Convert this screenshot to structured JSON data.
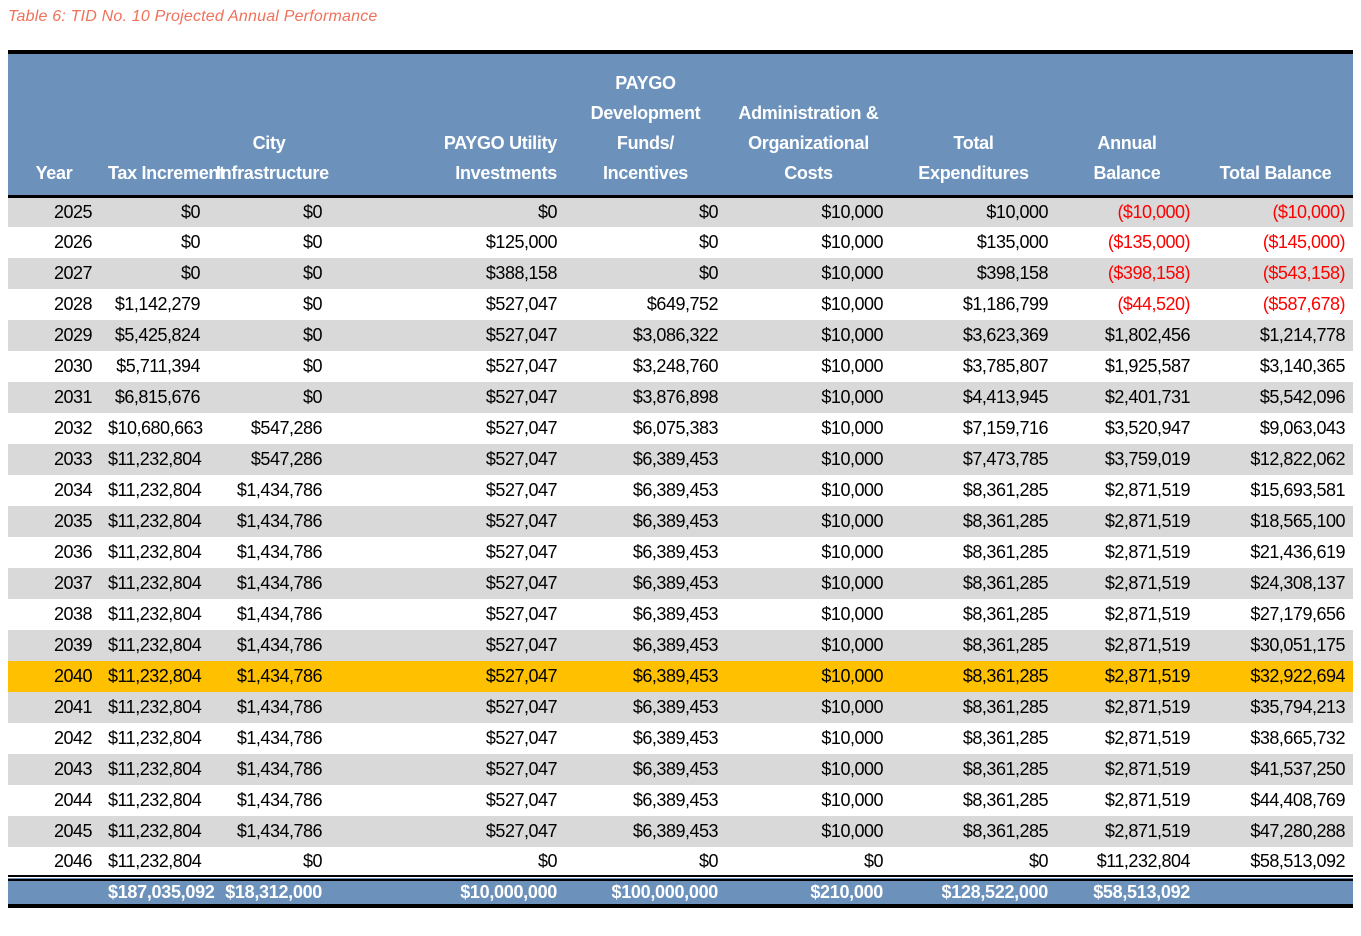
{
  "title": "Table 6: TID No. 10 Projected Annual Performance",
  "colors": {
    "header_bg": "#6C92BC",
    "total_bg": "#6C92BC",
    "stripe": "#D9D9D9",
    "highlight": "#FFC000",
    "negative": "#FF0000",
    "caption": "#F0715A",
    "text": "#000000",
    "header_text": "#FFFFFF"
  },
  "table": {
    "columns": [
      {
        "key": "year",
        "lines": [
          "Year"
        ]
      },
      {
        "key": "tax-increment",
        "lines": [
          "Tax Increment"
        ]
      },
      {
        "key": "city-infrastructure",
        "lines": [
          "City",
          "Infrastructure"
        ]
      },
      {
        "key": "paygo-utility-investments",
        "lines": [
          "PAYGO Utility",
          "Investments"
        ]
      },
      {
        "key": "paygo-development-funds-incentives",
        "lines": [
          "PAYGO",
          "Development",
          "Funds/",
          "Incentives"
        ]
      },
      {
        "key": "administration-organizational-costs",
        "lines": [
          "Administration &",
          "Organizational",
          "Costs"
        ]
      },
      {
        "key": "total-expenditures",
        "lines": [
          "Total",
          "Expenditures"
        ]
      },
      {
        "key": "annual-balance",
        "lines": [
          "Annual",
          "Balance"
        ]
      },
      {
        "key": "total-balance",
        "lines": [
          "Total Balance"
        ]
      }
    ],
    "rows": [
      {
        "cells": [
          "2025",
          "$0",
          "$0",
          "$0",
          "$0",
          "$10,000",
          "$10,000",
          "($10,000)",
          "($10,000)"
        ],
        "highlight": false
      },
      {
        "cells": [
          "2026",
          "$0",
          "$0",
          "$125,000",
          "$0",
          "$10,000",
          "$135,000",
          "($135,000)",
          "($145,000)"
        ],
        "highlight": false
      },
      {
        "cells": [
          "2027",
          "$0",
          "$0",
          "$388,158",
          "$0",
          "$10,000",
          "$398,158",
          "($398,158)",
          "($543,158)"
        ],
        "highlight": false
      },
      {
        "cells": [
          "2028",
          "$1,142,279",
          "$0",
          "$527,047",
          "$649,752",
          "$10,000",
          "$1,186,799",
          "($44,520)",
          "($587,678)"
        ],
        "highlight": false
      },
      {
        "cells": [
          "2029",
          "$5,425,824",
          "$0",
          "$527,047",
          "$3,086,322",
          "$10,000",
          "$3,623,369",
          "$1,802,456",
          "$1,214,778"
        ],
        "highlight": false
      },
      {
        "cells": [
          "2030",
          "$5,711,394",
          "$0",
          "$527,047",
          "$3,248,760",
          "$10,000",
          "$3,785,807",
          "$1,925,587",
          "$3,140,365"
        ],
        "highlight": false
      },
      {
        "cells": [
          "2031",
          "$6,815,676",
          "$0",
          "$527,047",
          "$3,876,898",
          "$10,000",
          "$4,413,945",
          "$2,401,731",
          "$5,542,096"
        ],
        "highlight": false
      },
      {
        "cells": [
          "2032",
          "$10,680,663",
          "$547,286",
          "$527,047",
          "$6,075,383",
          "$10,000",
          "$7,159,716",
          "$3,520,947",
          "$9,063,043"
        ],
        "highlight": false
      },
      {
        "cells": [
          "2033",
          "$11,232,804",
          "$547,286",
          "$527,047",
          "$6,389,453",
          "$10,000",
          "$7,473,785",
          "$3,759,019",
          "$12,822,062"
        ],
        "highlight": false
      },
      {
        "cells": [
          "2034",
          "$11,232,804",
          "$1,434,786",
          "$527,047",
          "$6,389,453",
          "$10,000",
          "$8,361,285",
          "$2,871,519",
          "$15,693,581"
        ],
        "highlight": false
      },
      {
        "cells": [
          "2035",
          "$11,232,804",
          "$1,434,786",
          "$527,047",
          "$6,389,453",
          "$10,000",
          "$8,361,285",
          "$2,871,519",
          "$18,565,100"
        ],
        "highlight": false
      },
      {
        "cells": [
          "2036",
          "$11,232,804",
          "$1,434,786",
          "$527,047",
          "$6,389,453",
          "$10,000",
          "$8,361,285",
          "$2,871,519",
          "$21,436,619"
        ],
        "highlight": false
      },
      {
        "cells": [
          "2037",
          "$11,232,804",
          "$1,434,786",
          "$527,047",
          "$6,389,453",
          "$10,000",
          "$8,361,285",
          "$2,871,519",
          "$24,308,137"
        ],
        "highlight": false
      },
      {
        "cells": [
          "2038",
          "$11,232,804",
          "$1,434,786",
          "$527,047",
          "$6,389,453",
          "$10,000",
          "$8,361,285",
          "$2,871,519",
          "$27,179,656"
        ],
        "highlight": false
      },
      {
        "cells": [
          "2039",
          "$11,232,804",
          "$1,434,786",
          "$527,047",
          "$6,389,453",
          "$10,000",
          "$8,361,285",
          "$2,871,519",
          "$30,051,175"
        ],
        "highlight": false
      },
      {
        "cells": [
          "2040",
          "$11,232,804",
          "$1,434,786",
          "$527,047",
          "$6,389,453",
          "$10,000",
          "$8,361,285",
          "$2,871,519",
          "$32,922,694"
        ],
        "highlight": true
      },
      {
        "cells": [
          "2041",
          "$11,232,804",
          "$1,434,786",
          "$527,047",
          "$6,389,453",
          "$10,000",
          "$8,361,285",
          "$2,871,519",
          "$35,794,213"
        ],
        "highlight": false
      },
      {
        "cells": [
          "2042",
          "$11,232,804",
          "$1,434,786",
          "$527,047",
          "$6,389,453",
          "$10,000",
          "$8,361,285",
          "$2,871,519",
          "$38,665,732"
        ],
        "highlight": false
      },
      {
        "cells": [
          "2043",
          "$11,232,804",
          "$1,434,786",
          "$527,047",
          "$6,389,453",
          "$10,000",
          "$8,361,285",
          "$2,871,519",
          "$41,537,250"
        ],
        "highlight": false
      },
      {
        "cells": [
          "2044",
          "$11,232,804",
          "$1,434,786",
          "$527,047",
          "$6,389,453",
          "$10,000",
          "$8,361,285",
          "$2,871,519",
          "$44,408,769"
        ],
        "highlight": false
      },
      {
        "cells": [
          "2045",
          "$11,232,804",
          "$1,434,786",
          "$527,047",
          "$6,389,453",
          "$10,000",
          "$8,361,285",
          "$2,871,519",
          "$47,280,288"
        ],
        "highlight": false
      },
      {
        "cells": [
          "2046",
          "$11,232,804",
          "$0",
          "$0",
          "$0",
          "$0",
          "$0",
          "$11,232,804",
          "$58,513,092"
        ],
        "highlight": false
      }
    ],
    "total_row": {
      "cells": [
        "",
        "$187,035,092",
        "$18,312,000",
        "$10,000,000",
        "$100,000,000",
        "$210,000",
        "$128,522,000",
        "$58,513,092",
        ""
      ]
    }
  }
}
